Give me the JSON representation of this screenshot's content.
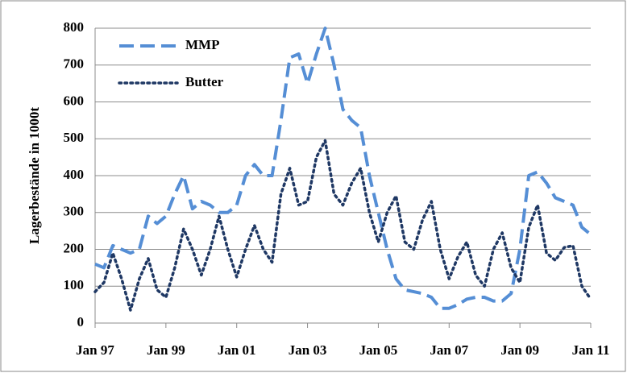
{
  "chart_data": {
    "type": "line",
    "y_label": "Lagerbestände in 1000t",
    "categories": [
      "Jan 97",
      null,
      null,
      null,
      null,
      null,
      null,
      null,
      "Jan 99",
      null,
      null,
      null,
      null,
      null,
      null,
      null,
      "Jan 01",
      null,
      null,
      null,
      null,
      null,
      null,
      null,
      "Jan 03",
      null,
      null,
      null,
      null,
      null,
      null,
      null,
      "Jan 05",
      null,
      null,
      null,
      null,
      null,
      null,
      null,
      "Jan 07",
      null,
      null,
      null,
      null,
      null,
      null,
      null,
      "Jan 09",
      null,
      null,
      null,
      null,
      null,
      null,
      null,
      "Jan 11"
    ],
    "series": [
      {
        "name": "MMP",
        "color": "#558ed5",
        "style": "dashed",
        "values": [
          160,
          150,
          210,
          200,
          190,
          200,
          290,
          270,
          290,
          350,
          400,
          310,
          330,
          320,
          300,
          300,
          320,
          400,
          430,
          400,
          400,
          550,
          720,
          730,
          650,
          730,
          800,
          700,
          580,
          550,
          530,
          400,
          300,
          200,
          120,
          90,
          85,
          80,
          70,
          40,
          40,
          50,
          65,
          70,
          70,
          60,
          60,
          80,
          200,
          400,
          410,
          380,
          340,
          330,
          320,
          260,
          240
        ]
      },
      {
        "name": "Butter",
        "color": "#1f3864",
        "style": "dotted",
        "values": [
          85,
          110,
          190,
          120,
          35,
          120,
          175,
          90,
          70,
          150,
          255,
          200,
          130,
          200,
          290,
          200,
          125,
          200,
          265,
          200,
          165,
          350,
          420,
          320,
          330,
          450,
          495,
          350,
          320,
          380,
          420,
          300,
          220,
          300,
          345,
          220,
          200,
          280,
          330,
          200,
          120,
          180,
          220,
          130,
          100,
          200,
          245,
          150,
          110,
          260,
          320,
          190,
          170,
          205,
          210,
          100,
          65
        ]
      }
    ],
    "ylim": [
      0,
      800
    ],
    "yticks": [
      0,
      100,
      200,
      300,
      400,
      500,
      600,
      700,
      800
    ],
    "grid": true,
    "legend": "top-left"
  }
}
